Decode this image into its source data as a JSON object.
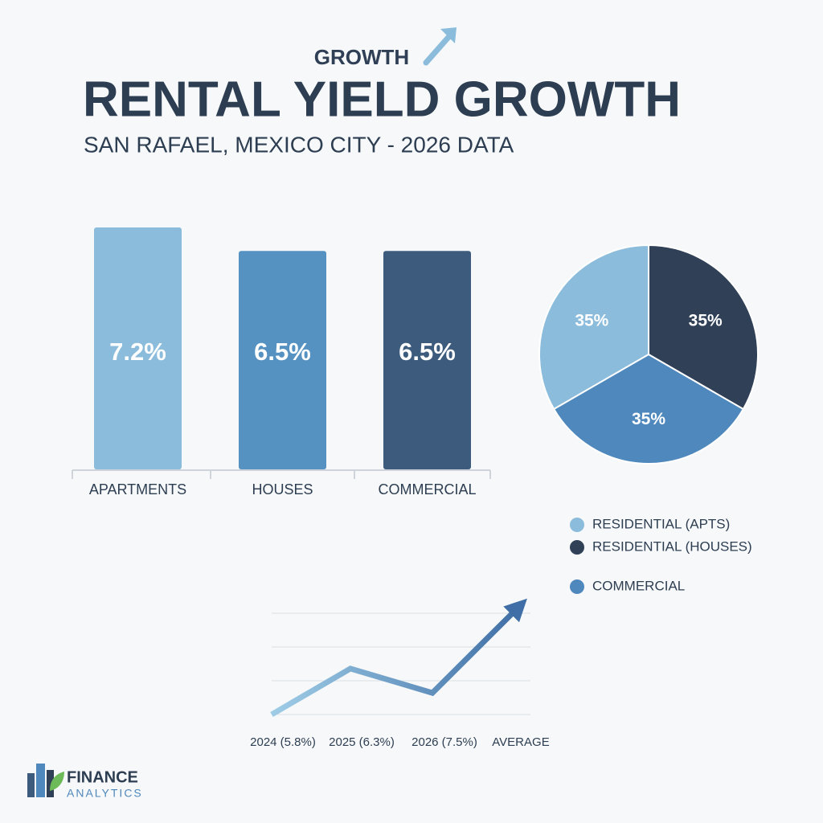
{
  "header": {
    "kicker": "GROWTH",
    "title": "RENTAL YIELD GROWTH",
    "subtitle": "SAN RAFAEL, MEXICO CITY - 2026 DATA"
  },
  "logo": {
    "name": "FINANCE",
    "tagline": "ANALYTICS"
  },
  "chart_data": [
    {
      "type": "bar",
      "categories": [
        "APARTMENTS",
        "HOUSES",
        "COMMERCIAL"
      ],
      "values": [
        7.2,
        6.5,
        6.5
      ],
      "value_labels": [
        "7.2%",
        "6.5%",
        "6.5%"
      ],
      "colors": [
        "#8bbcdc",
        "#5591c1",
        "#3d5b7d"
      ]
    },
    {
      "type": "pie",
      "categories": [
        "RESIDENTIAL (APTS)",
        "RESIDENTIAL (HOUSES)",
        "COMMERCIAL"
      ],
      "values": [
        35,
        35,
        35
      ],
      "value_labels": [
        "35%",
        "35%",
        "35%"
      ],
      "colors": [
        "#8bbcdc",
        "#2f4057",
        "#4f88bd"
      ]
    },
    {
      "type": "line",
      "categories": [
        "2024 (5.8%)",
        "2025 (6.3%)",
        "2026 (7.5%)",
        "AVERAGE"
      ],
      "values": [
        0,
        1.36,
        0.64,
        3.2
      ],
      "ylim": [
        0,
        3
      ],
      "color_start": "#9fcde7",
      "color_end": "#3f6fa6"
    }
  ]
}
